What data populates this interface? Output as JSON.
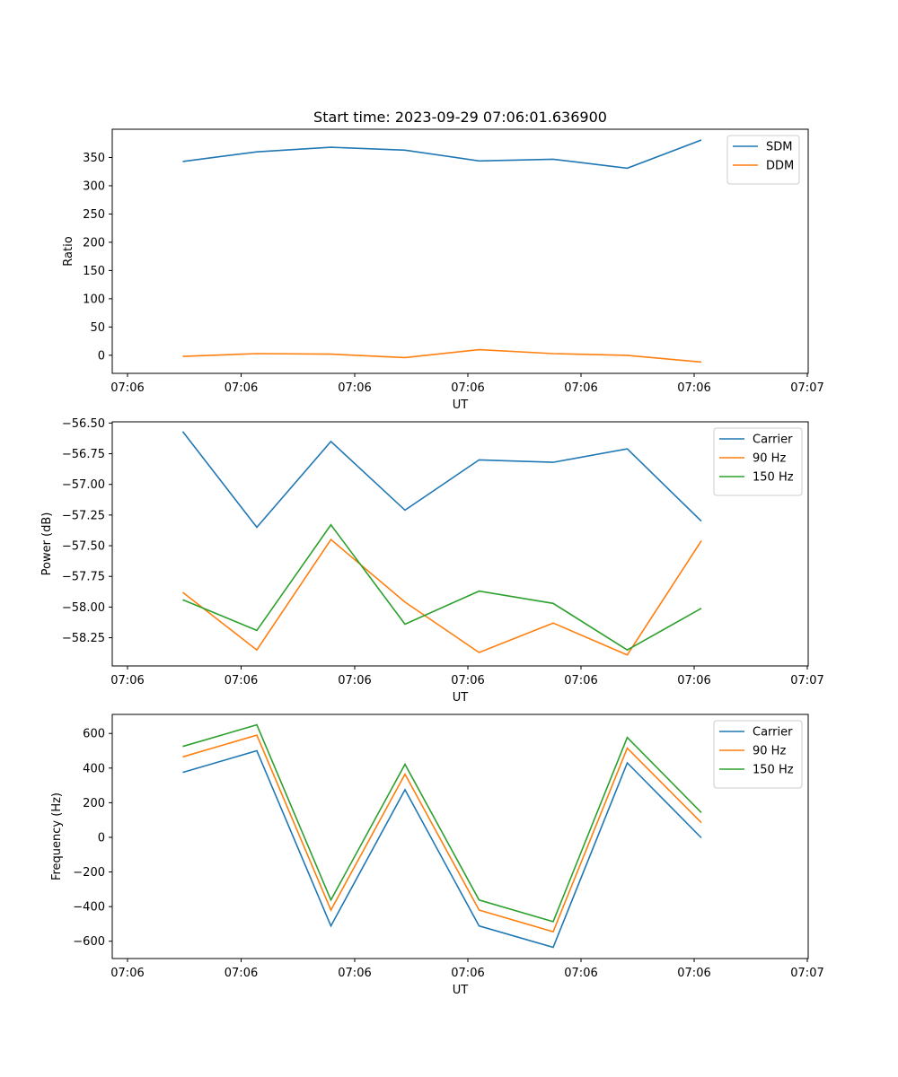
{
  "chart_data": [
    {
      "type": "line",
      "title": "Start time: 2023-09-29 07:06:01.636900",
      "xlabel": "UT",
      "ylabel": "Ratio",
      "x_tick_labels": [
        "07:06",
        "07:06",
        "07:06",
        "07:06",
        "07:06",
        "07:06",
        "07:07"
      ],
      "x_index": [
        0,
        1,
        2,
        3,
        4,
        5,
        6,
        7
      ],
      "ylim": [
        -32,
        400
      ],
      "yticks": [
        0,
        50,
        100,
        150,
        200,
        250,
        300,
        350
      ],
      "ytick_labels": [
        "0",
        "50",
        "100",
        "150",
        "200",
        "250",
        "300",
        "350"
      ],
      "legend_loc": "upper-right",
      "series": [
        {
          "name": "SDM",
          "color": "#1f77b4",
          "values": [
            343,
            360,
            368,
            363,
            344,
            347,
            331,
            381
          ]
        },
        {
          "name": "DDM",
          "color": "#ff7f0e",
          "values": [
            -2,
            3,
            2,
            -4,
            10,
            3,
            0,
            -12
          ]
        }
      ]
    },
    {
      "type": "line",
      "xlabel": "UT",
      "ylabel": "Power (dB)",
      "x_tick_labels": [
        "07:06",
        "07:06",
        "07:06",
        "07:06",
        "07:06",
        "07:06",
        "07:07"
      ],
      "x_index": [
        0,
        1,
        2,
        3,
        4,
        5,
        6,
        7
      ],
      "ylim": [
        -58.48,
        -56.49
      ],
      "yticks": [
        -56.5,
        -56.75,
        -57.0,
        -57.25,
        -57.5,
        -57.75,
        -58.0,
        -58.25
      ],
      "ytick_labels": [
        "−56.50",
        "−56.75",
        "−57.00",
        "−57.25",
        "−57.50",
        "−57.75",
        "−58.00",
        "−58.25"
      ],
      "legend_loc": "upper-right",
      "series": [
        {
          "name": "Carrier",
          "color": "#1f77b4",
          "values": [
            -56.57,
            -57.35,
            -56.65,
            -57.21,
            -56.8,
            -56.82,
            -56.71,
            -57.3
          ]
        },
        {
          "name": "90 Hz",
          "color": "#ff7f0e",
          "values": [
            -57.88,
            -58.35,
            -57.45,
            -57.96,
            -58.37,
            -58.13,
            -58.39,
            -57.46
          ]
        },
        {
          "name": "150 Hz",
          "color": "#2ca02c",
          "values": [
            -57.94,
            -58.19,
            -57.33,
            -58.14,
            -57.87,
            -57.97,
            -58.35,
            -58.01
          ]
        }
      ]
    },
    {
      "type": "line",
      "xlabel": "UT",
      "ylabel": "Frequency (Hz)",
      "x_tick_labels": [
        "07:06",
        "07:06",
        "07:06",
        "07:06",
        "07:06",
        "07:06",
        "07:07"
      ],
      "x_index": [
        0,
        1,
        2,
        3,
        4,
        5,
        6,
        7
      ],
      "ylim": [
        -700,
        710
      ],
      "yticks": [
        600,
        400,
        200,
        0,
        -200,
        -400,
        -600
      ],
      "ytick_labels": [
        "600",
        "400",
        "200",
        "0",
        "−200",
        "−400",
        "−600"
      ],
      "legend_loc": "upper-right",
      "series": [
        {
          "name": "Carrier",
          "color": "#1f77b4",
          "values": [
            375,
            500,
            -512,
            275,
            -512,
            -635,
            430,
            -3
          ]
        },
        {
          "name": "90 Hz",
          "color": "#ff7f0e",
          "values": [
            465,
            590,
            -420,
            365,
            -420,
            -545,
            515,
            85
          ]
        },
        {
          "name": "150 Hz",
          "color": "#2ca02c",
          "values": [
            525,
            650,
            -362,
            422,
            -362,
            -487,
            577,
            143
          ]
        }
      ]
    }
  ]
}
